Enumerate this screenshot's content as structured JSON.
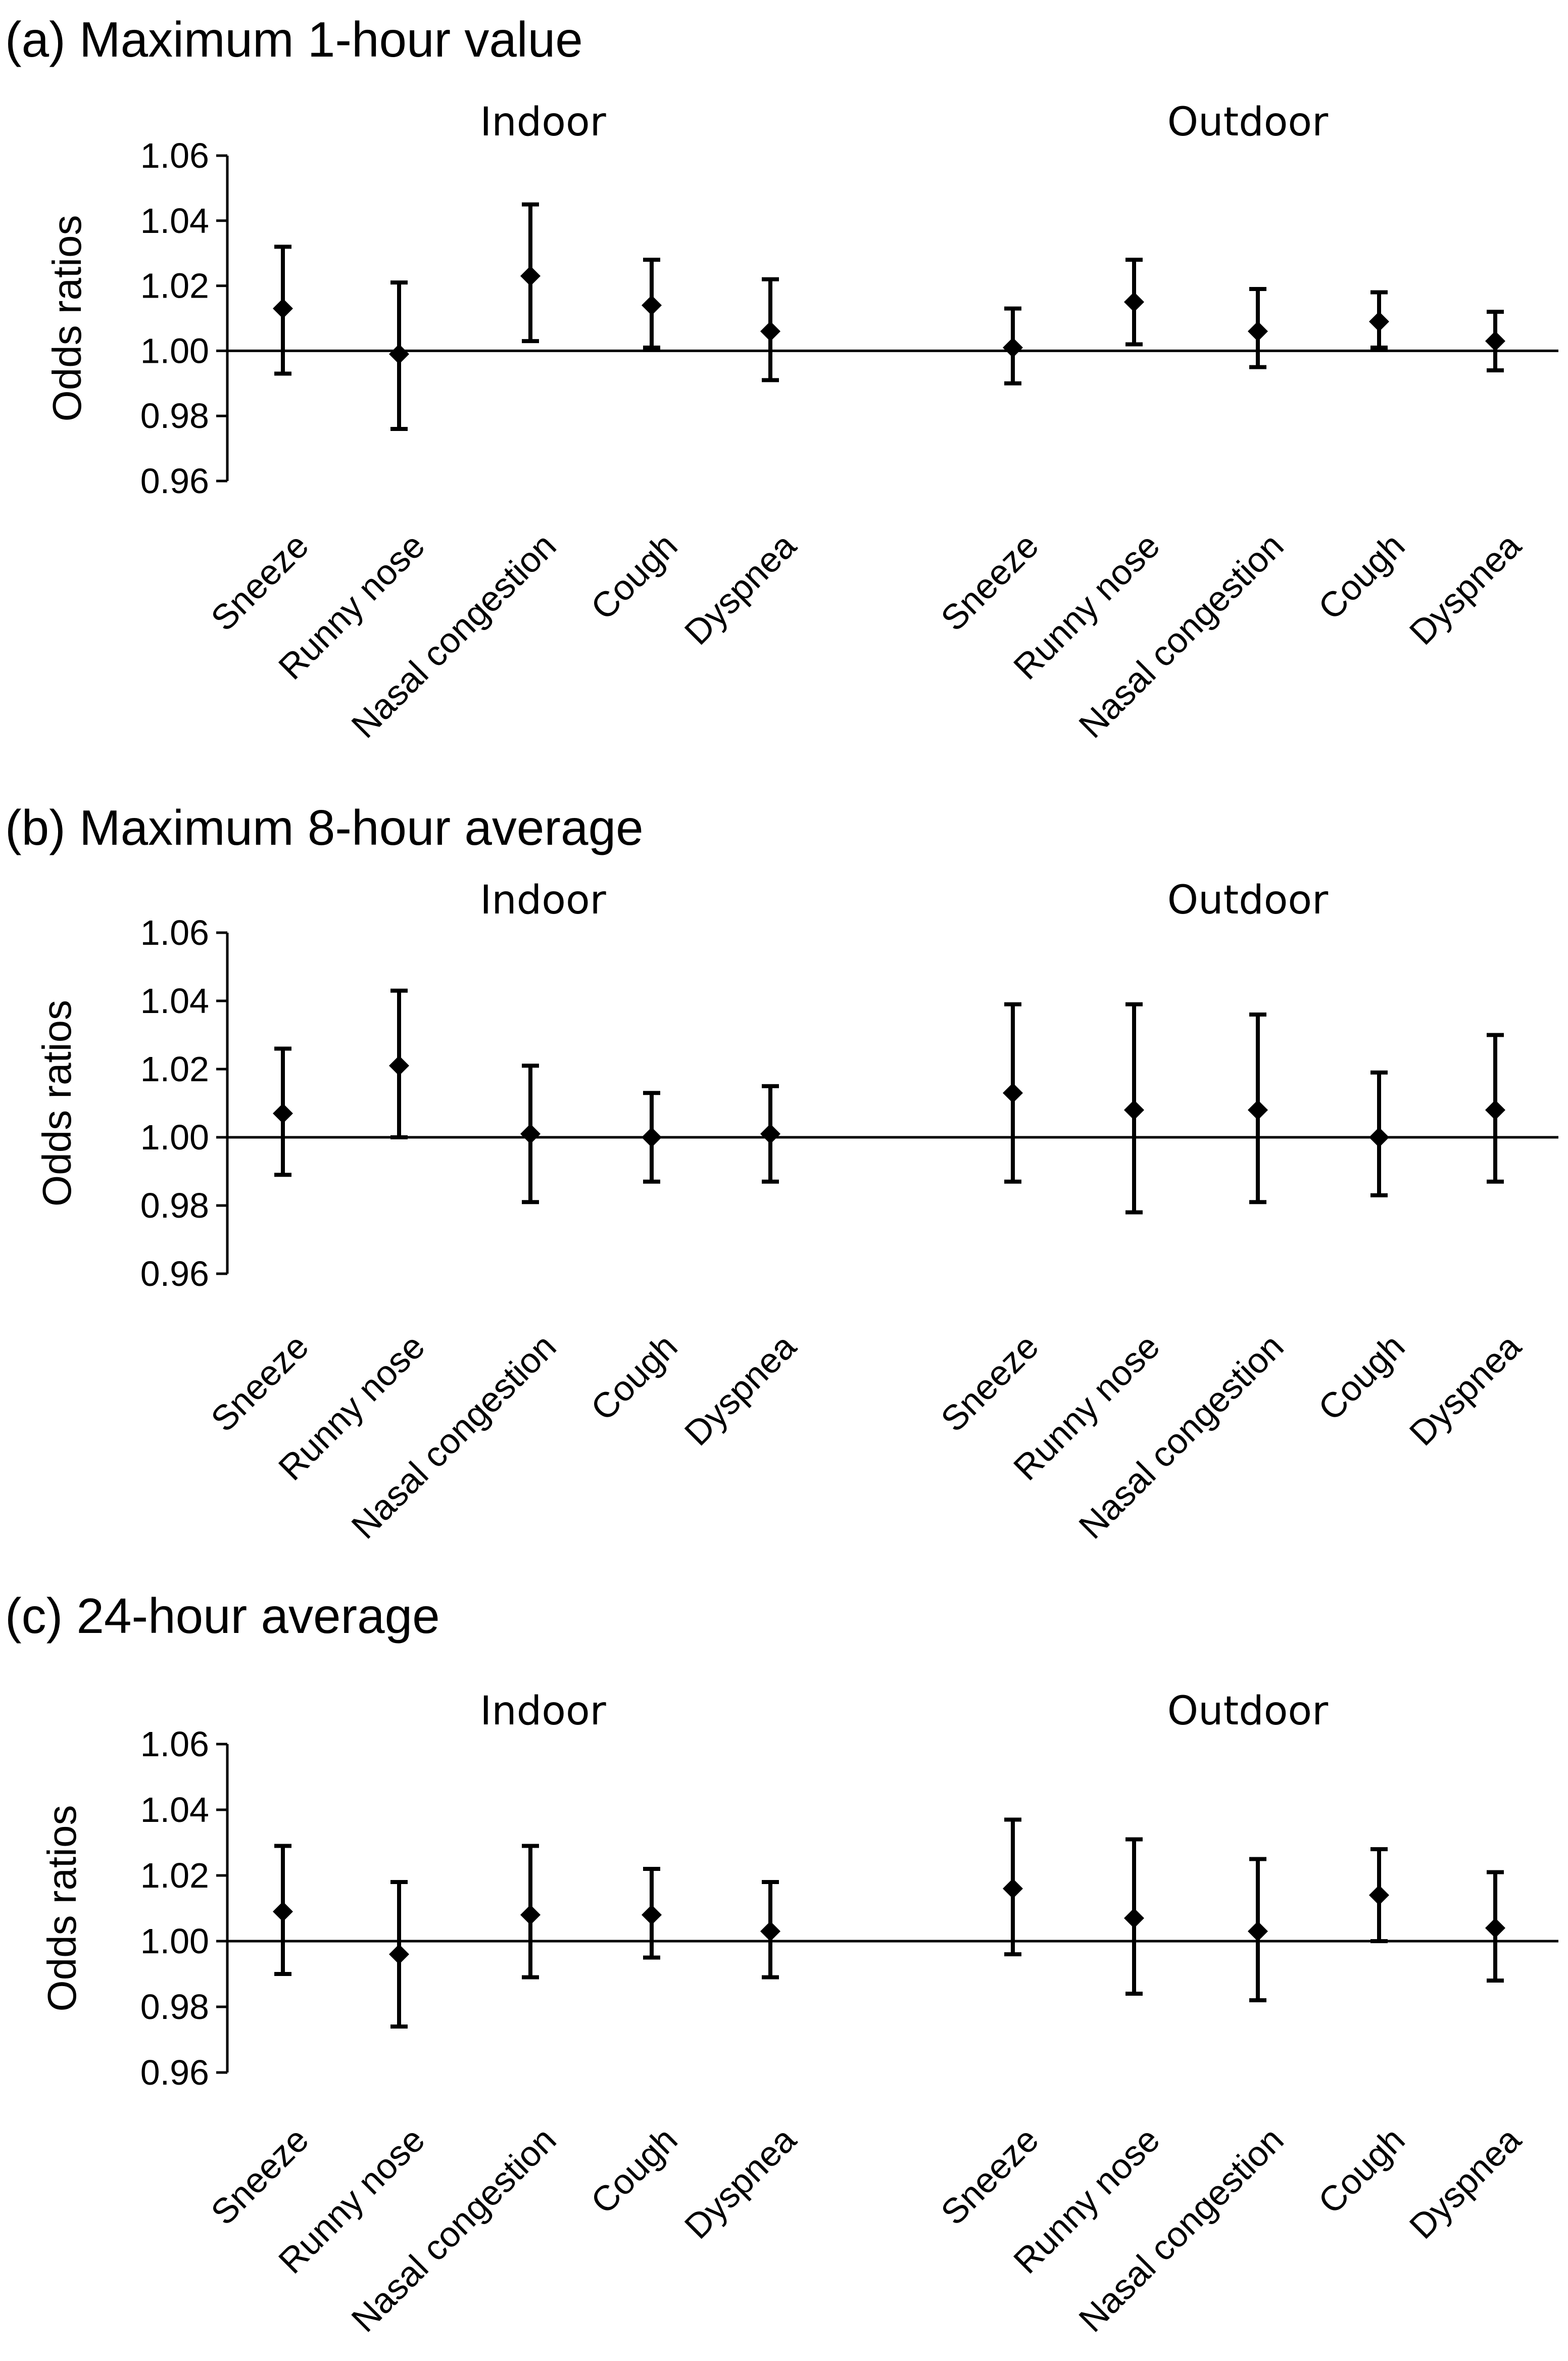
{
  "chart_data": [
    {
      "type": "scatter",
      "title": "(a) Maximum 1-hour value",
      "ylabel": "Odds ratios",
      "ylim": [
        0.96,
        1.06
      ],
      "yticks": [
        "0.96",
        "0.98",
        "1.00",
        "1.02",
        "1.04",
        "1.06"
      ],
      "reference_line": 1.0,
      "groups": [
        {
          "name": "Indoor",
          "categories": [
            "Sneeze",
            "Runny nose",
            "Nasal congestion",
            "Cough",
            "Dyspnea"
          ],
          "values": [
            1.013,
            0.999,
            1.023,
            1.014,
            1.006
          ],
          "lower": [
            0.993,
            0.976,
            1.003,
            1.001,
            0.991
          ],
          "upper": [
            1.032,
            1.021,
            1.045,
            1.028,
            1.022
          ]
        },
        {
          "name": "Outdoor",
          "categories": [
            "Sneeze",
            "Runny nose",
            "Nasal congestion",
            "Cough",
            "Dyspnea"
          ],
          "values": [
            1.001,
            1.015,
            1.006,
            1.009,
            1.003
          ],
          "lower": [
            0.99,
            1.002,
            0.995,
            1.001,
            0.994
          ],
          "upper": [
            1.013,
            1.028,
            1.019,
            1.018,
            1.012
          ]
        }
      ]
    },
    {
      "type": "scatter",
      "title": "(b) Maximum 8-hour average",
      "ylabel": "Odds ratios",
      "ylim": [
        0.96,
        1.06
      ],
      "yticks": [
        "0.96",
        "0.98",
        "1.00",
        "1.02",
        "1.04",
        "1.06"
      ],
      "reference_line": 1.0,
      "groups": [
        {
          "name": "Indoor",
          "categories": [
            "Sneeze",
            "Runny nose",
            "Nasal congestion",
            "Cough",
            "Dyspnea"
          ],
          "values": [
            1.007,
            1.021,
            1.001,
            1.0,
            1.001
          ],
          "lower": [
            0.989,
            1.0,
            0.981,
            0.987,
            0.987
          ],
          "upper": [
            1.026,
            1.043,
            1.021,
            1.013,
            1.015
          ]
        },
        {
          "name": "Outdoor",
          "categories": [
            "Sneeze",
            "Runny nose",
            "Nasal congestion",
            "Cough",
            "Dyspnea"
          ],
          "values": [
            1.013,
            1.008,
            1.008,
            1.0,
            1.008
          ],
          "lower": [
            0.987,
            0.978,
            0.981,
            0.983,
            0.987
          ],
          "upper": [
            1.039,
            1.039,
            1.036,
            1.019,
            1.03
          ]
        }
      ]
    },
    {
      "type": "scatter",
      "title": "(c) 24-hour average",
      "ylabel": "Odds ratios",
      "ylim": [
        0.96,
        1.06
      ],
      "yticks": [
        "0.96",
        "0.98",
        "1.00",
        "1.02",
        "1.04",
        "1.06"
      ],
      "reference_line": 1.0,
      "groups": [
        {
          "name": "Indoor",
          "categories": [
            "Sneeze",
            "Runny nose",
            "Nasal congestion",
            "Cough",
            "Dyspnea"
          ],
          "values": [
            1.009,
            0.996,
            1.008,
            1.008,
            1.003
          ],
          "lower": [
            0.99,
            0.974,
            0.989,
            0.995,
            0.989
          ],
          "upper": [
            1.029,
            1.018,
            1.029,
            1.022,
            1.018
          ]
        },
        {
          "name": "Outdoor",
          "categories": [
            "Sneeze",
            "Runny nose",
            "Nasal congestion",
            "Cough",
            "Dyspnea"
          ],
          "values": [
            1.016,
            1.007,
            1.003,
            1.014,
            1.004
          ],
          "lower": [
            0.996,
            0.984,
            0.982,
            1.0,
            0.988
          ],
          "upper": [
            1.037,
            1.031,
            1.025,
            1.028,
            1.021
          ]
        }
      ]
    }
  ]
}
